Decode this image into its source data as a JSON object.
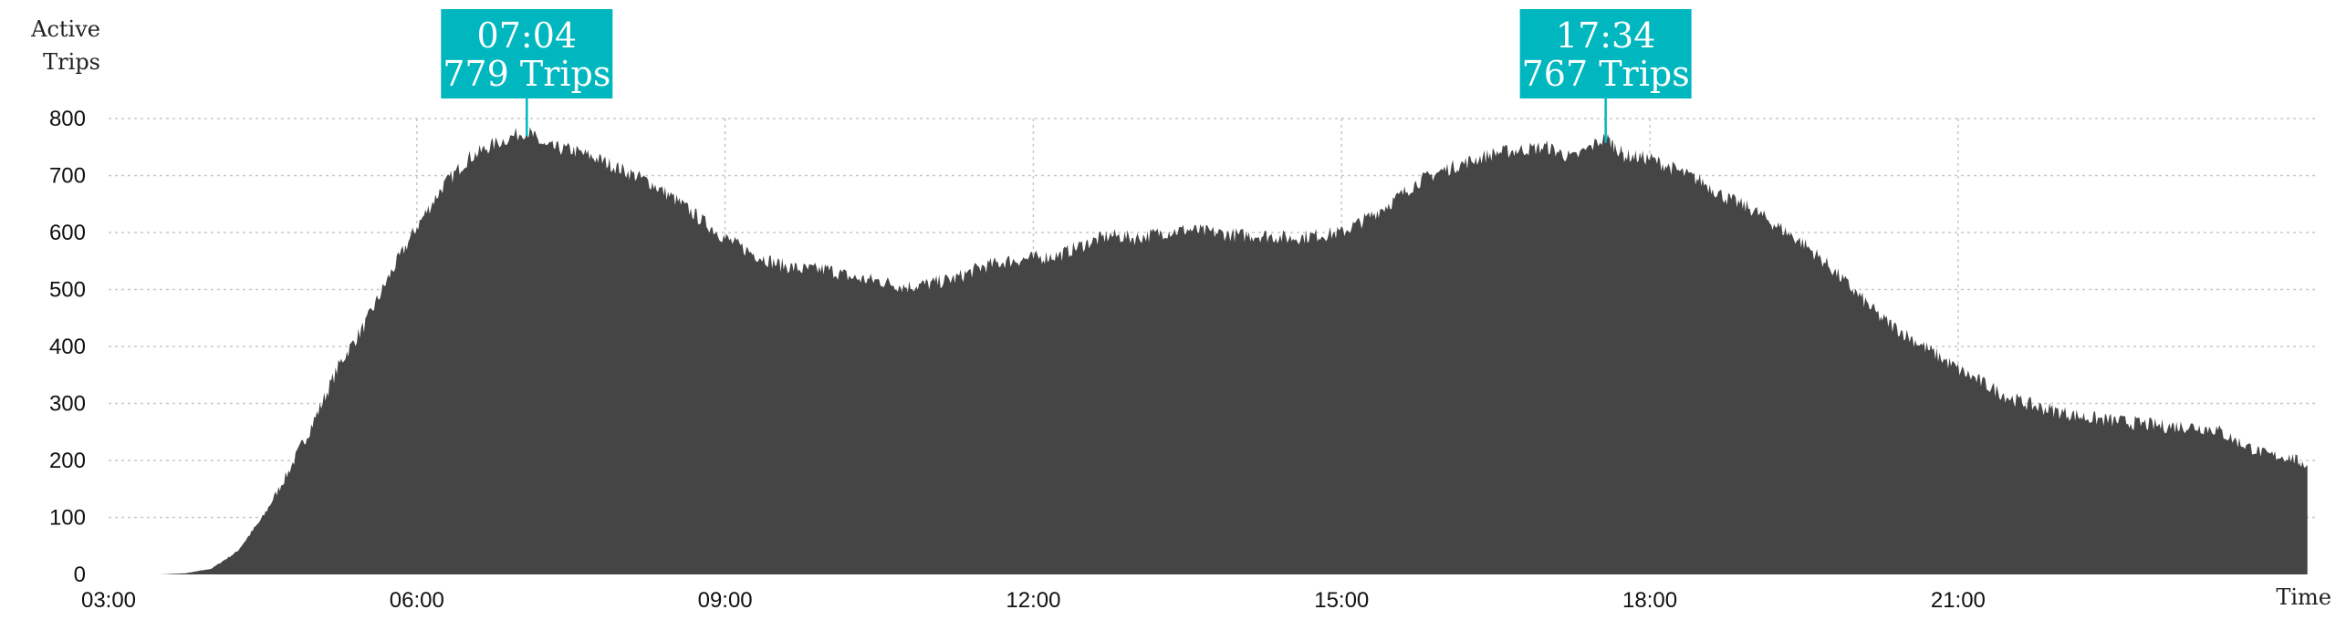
{
  "chart_data": {
    "type": "area",
    "ylabel": [
      "Active",
      "Trips"
    ],
    "xlabel": "Time",
    "x_tick_labels": [
      "03:00",
      "06:00",
      "09:00",
      "12:00",
      "15:00",
      "18:00",
      "21:00"
    ],
    "y_tick_labels": [
      "0",
      "100",
      "200",
      "300",
      "400",
      "500",
      "600",
      "700",
      "800"
    ],
    "x_range_hours": [
      3.0,
      24.5
    ],
    "ylim": [
      0,
      800
    ],
    "grid": true,
    "series": [
      {
        "color": "#454545",
        "points": [
          [
            3.5,
            0
          ],
          [
            3.75,
            2
          ],
          [
            4.0,
            10
          ],
          [
            4.25,
            40
          ],
          [
            4.5,
            100
          ],
          [
            4.75,
            180
          ],
          [
            5.0,
            270
          ],
          [
            5.25,
            370
          ],
          [
            5.5,
            440
          ],
          [
            5.75,
            530
          ],
          [
            6.0,
            610
          ],
          [
            6.25,
            680
          ],
          [
            6.5,
            730
          ],
          [
            6.75,
            755
          ],
          [
            7.07,
            779
          ],
          [
            7.25,
            750
          ],
          [
            7.5,
            745
          ],
          [
            7.75,
            730
          ],
          [
            8.0,
            710
          ],
          [
            8.25,
            690
          ],
          [
            8.5,
            660
          ],
          [
            8.75,
            625
          ],
          [
            9.0,
            590
          ],
          [
            9.25,
            565
          ],
          [
            9.5,
            545
          ],
          [
            9.75,
            535
          ],
          [
            10.0,
            535
          ],
          [
            10.25,
            520
          ],
          [
            10.5,
            515
          ],
          [
            10.75,
            505
          ],
          [
            11.0,
            510
          ],
          [
            11.25,
            520
          ],
          [
            11.5,
            540
          ],
          [
            11.75,
            550
          ],
          [
            12.0,
            555
          ],
          [
            12.25,
            560
          ],
          [
            12.5,
            580
          ],
          [
            12.75,
            595
          ],
          [
            13.0,
            590
          ],
          [
            13.25,
            600
          ],
          [
            13.5,
            605
          ],
          [
            13.75,
            600
          ],
          [
            14.0,
            595
          ],
          [
            14.25,
            595
          ],
          [
            14.5,
            590
          ],
          [
            14.75,
            595
          ],
          [
            15.0,
            600
          ],
          [
            15.25,
            625
          ],
          [
            15.5,
            655
          ],
          [
            15.75,
            690
          ],
          [
            16.0,
            710
          ],
          [
            16.25,
            725
          ],
          [
            16.5,
            740
          ],
          [
            16.75,
            745
          ],
          [
            17.0,
            750
          ],
          [
            17.25,
            730
          ],
          [
            17.57,
            767
          ],
          [
            17.75,
            735
          ],
          [
            18.0,
            730
          ],
          [
            18.25,
            710
          ],
          [
            18.5,
            690
          ],
          [
            18.75,
            660
          ],
          [
            19.0,
            640
          ],
          [
            19.25,
            610
          ],
          [
            19.5,
            580
          ],
          [
            19.75,
            540
          ],
          [
            20.0,
            495
          ],
          [
            20.25,
            450
          ],
          [
            20.5,
            420
          ],
          [
            20.75,
            390
          ],
          [
            21.0,
            360
          ],
          [
            21.25,
            335
          ],
          [
            21.5,
            310
          ],
          [
            21.75,
            295
          ],
          [
            22.0,
            285
          ],
          [
            22.25,
            275
          ],
          [
            22.5,
            270
          ],
          [
            22.75,
            265
          ],
          [
            23.0,
            260
          ],
          [
            23.25,
            260
          ],
          [
            23.5,
            255
          ],
          [
            23.75,
            230
          ],
          [
            24.0,
            210
          ],
          [
            24.25,
            205
          ],
          [
            24.4,
            190
          ]
        ]
      }
    ],
    "annotations": [
      {
        "x_hours": 7.07,
        "y": 779,
        "time_label": "07:04",
        "value_label": "779 Trips"
      },
      {
        "x_hours": 17.57,
        "y": 767,
        "time_label": "17:34",
        "value_label": "767 Trips"
      }
    ],
    "annotation_color": "#00b7c0",
    "grid_color": "#c8c8c8"
  }
}
